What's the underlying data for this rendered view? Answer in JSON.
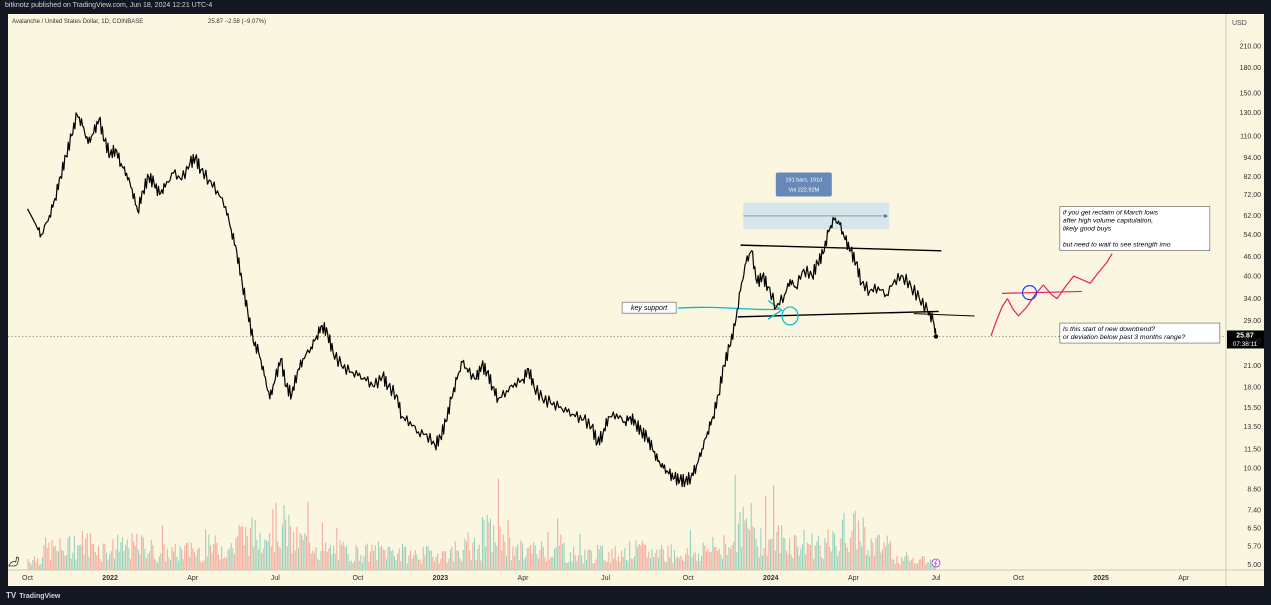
{
  "header": {
    "publisher": "bitknotz published on TradingView.com, Jun 18, 2024 12:21 UTC-4"
  },
  "footer": {
    "brand_mark": "TV",
    "brand": "TradingView"
  },
  "chart_data": {
    "type": "line",
    "title": "Avalanche / United States Dollar, 1D, COINBASE",
    "quote": "25.87  −2.58 (−9.07%)",
    "currency": "USD",
    "price_scale": "log",
    "ylim": [
      4.8,
      250
    ],
    "y_ticks": [
      210,
      180,
      150,
      130,
      110,
      94,
      82,
      72,
      62,
      54,
      46,
      40,
      34,
      29,
      25,
      21,
      18,
      15.5,
      13.5,
      11.5,
      10,
      8.6,
      7.4,
      6.5,
      5.7,
      5
    ],
    "x_ticks": [
      {
        "label": "Oct",
        "t": 0
      },
      {
        "label": "2022",
        "t": 3
      },
      {
        "label": "Apr",
        "t": 6
      },
      {
        "label": "Jul",
        "t": 9
      },
      {
        "label": "Oct",
        "t": 12
      },
      {
        "label": "2023",
        "t": 15
      },
      {
        "label": "Apr",
        "t": 18
      },
      {
        "label": "Jul",
        "t": 21
      },
      {
        "label": "Oct",
        "t": 24
      },
      {
        "label": "2024",
        "t": 27
      },
      {
        "label": "Apr",
        "t": 30
      },
      {
        "label": "Jul",
        "t": 33
      },
      {
        "label": "Oct",
        "t": 36
      },
      {
        "label": "2025",
        "t": 39
      },
      {
        "label": "Apr",
        "t": 42
      }
    ],
    "x_range": [
      -0.2,
      43.1
    ],
    "time_unit": "months since 2021-10-01",
    "series": [
      {
        "name": "AVAX/USD close",
        "points": [
          [
            0.0,
            65
          ],
          [
            0.3,
            58
          ],
          [
            0.5,
            54
          ],
          [
            0.8,
            62
          ],
          [
            1.0,
            70
          ],
          [
            1.2,
            82
          ],
          [
            1.4,
            95
          ],
          [
            1.6,
            110
          ],
          [
            1.8,
            128
          ],
          [
            2.0,
            118
          ],
          [
            2.2,
            104
          ],
          [
            2.4,
            112
          ],
          [
            2.6,
            124
          ],
          [
            2.8,
            106
          ],
          [
            3.0,
            96
          ],
          [
            3.2,
            100
          ],
          [
            3.4,
            90
          ],
          [
            3.6,
            84
          ],
          [
            3.8,
            75
          ],
          [
            4.0,
            64
          ],
          [
            4.2,
            74
          ],
          [
            4.4,
            82
          ],
          [
            4.6,
            78
          ],
          [
            4.8,
            72
          ],
          [
            5.0,
            76
          ],
          [
            5.3,
            84
          ],
          [
            5.6,
            80
          ],
          [
            5.9,
            90
          ],
          [
            6.1,
            94
          ],
          [
            6.3,
            86
          ],
          [
            6.6,
            80
          ],
          [
            6.9,
            74
          ],
          [
            7.2,
            66
          ],
          [
            7.4,
            56
          ],
          [
            7.6,
            48
          ],
          [
            7.8,
            38
          ],
          [
            8.0,
            31
          ],
          [
            8.2,
            25
          ],
          [
            8.4,
            23
          ],
          [
            8.6,
            19.5
          ],
          [
            8.8,
            16.5
          ],
          [
            9.0,
            19
          ],
          [
            9.2,
            22
          ],
          [
            9.4,
            18
          ],
          [
            9.6,
            17
          ],
          [
            9.8,
            20
          ],
          [
            10.0,
            22
          ],
          [
            10.3,
            24
          ],
          [
            10.5,
            26
          ],
          [
            10.7,
            28
          ],
          [
            10.9,
            26.5
          ],
          [
            11.1,
            23
          ],
          [
            11.4,
            21
          ],
          [
            11.7,
            20
          ],
          [
            12.0,
            19.5
          ],
          [
            12.3,
            18.8
          ],
          [
            12.6,
            18
          ],
          [
            12.9,
            19.5
          ],
          [
            13.1,
            18
          ],
          [
            13.4,
            17
          ],
          [
            13.6,
            14.5
          ],
          [
            13.9,
            14
          ],
          [
            14.2,
            13
          ],
          [
            14.5,
            12.8
          ],
          [
            14.8,
            11.8
          ],
          [
            15.0,
            12.5
          ],
          [
            15.2,
            14
          ],
          [
            15.4,
            16.5
          ],
          [
            15.6,
            19
          ],
          [
            15.8,
            21.5
          ],
          [
            16.0,
            20
          ],
          [
            16.3,
            19
          ],
          [
            16.5,
            21
          ],
          [
            16.7,
            20
          ],
          [
            16.9,
            18
          ],
          [
            17.1,
            16.5
          ],
          [
            17.4,
            17.5
          ],
          [
            17.7,
            18.5
          ],
          [
            18.0,
            19
          ],
          [
            18.2,
            20.5
          ],
          [
            18.4,
            18
          ],
          [
            18.7,
            16.5
          ],
          [
            19.0,
            16
          ],
          [
            19.3,
            15.5
          ],
          [
            19.6,
            15
          ],
          [
            19.9,
            14.5
          ],
          [
            20.2,
            14.2
          ],
          [
            20.5,
            13.5
          ],
          [
            20.7,
            12
          ],
          [
            20.9,
            12.8
          ],
          [
            21.1,
            14.5
          ],
          [
            21.4,
            14.8
          ],
          [
            21.7,
            14
          ],
          [
            21.9,
            14.5
          ],
          [
            22.1,
            13.8
          ],
          [
            22.3,
            13
          ],
          [
            22.5,
            12.5
          ],
          [
            22.7,
            11.5
          ],
          [
            22.9,
            10.5
          ],
          [
            23.1,
            10
          ],
          [
            23.3,
            9.6
          ],
          [
            23.5,
            9.3
          ],
          [
            23.7,
            9.2
          ],
          [
            23.9,
            9.1
          ],
          [
            24.1,
            9.4
          ],
          [
            24.3,
            10.2
          ],
          [
            24.5,
            11.5
          ],
          [
            24.7,
            13
          ],
          [
            24.9,
            14.5
          ],
          [
            25.1,
            17
          ],
          [
            25.3,
            21
          ],
          [
            25.5,
            24
          ],
          [
            25.7,
            28
          ],
          [
            25.9,
            36
          ],
          [
            26.1,
            44
          ],
          [
            26.3,
            48
          ],
          [
            26.5,
            38
          ],
          [
            26.7,
            40
          ],
          [
            26.9,
            37
          ],
          [
            27.2,
            32
          ],
          [
            27.5,
            35
          ],
          [
            27.7,
            39
          ],
          [
            27.9,
            37
          ],
          [
            28.2,
            42
          ],
          [
            28.5,
            40
          ],
          [
            28.7,
            44
          ],
          [
            28.9,
            47
          ],
          [
            29.1,
            55
          ],
          [
            29.3,
            60
          ],
          [
            29.5,
            58
          ],
          [
            29.7,
            52
          ],
          [
            29.9,
            48
          ],
          [
            30.1,
            44
          ],
          [
            30.3,
            38
          ],
          [
            30.6,
            36
          ],
          [
            30.9,
            37
          ],
          [
            31.2,
            35
          ],
          [
            31.5,
            39
          ],
          [
            31.8,
            40
          ],
          [
            32.1,
            37
          ],
          [
            32.4,
            34
          ],
          [
            32.7,
            31
          ],
          [
            32.9,
            29
          ],
          [
            33.0,
            25.87
          ]
        ]
      },
      {
        "name": "Projection (drawing)",
        "color": "#e91e63",
        "points": [
          [
            35.0,
            26
          ],
          [
            35.2,
            29
          ],
          [
            35.4,
            32
          ],
          [
            35.6,
            34
          ],
          [
            35.8,
            31.5
          ],
          [
            36.0,
            30
          ],
          [
            36.3,
            32
          ],
          [
            36.6,
            35
          ],
          [
            36.9,
            37.5
          ],
          [
            37.2,
            35
          ],
          [
            37.4,
            34
          ],
          [
            37.7,
            37
          ],
          [
            38.0,
            40
          ],
          [
            38.3,
            39
          ],
          [
            38.6,
            38
          ],
          [
            38.9,
            41
          ],
          [
            39.2,
            44
          ],
          [
            39.4,
            47
          ]
        ]
      }
    ],
    "volume": {
      "name": "Volume",
      "approx_months": [
        0,
        1,
        2,
        3,
        4,
        5,
        6,
        7,
        8,
        9,
        10,
        11,
        12,
        13,
        14,
        15,
        16,
        17,
        18,
        19,
        20,
        21,
        22,
        23,
        24,
        25,
        26,
        27,
        28,
        29,
        30,
        31,
        32,
        33
      ],
      "relative": [
        0.12,
        0.22,
        0.28,
        0.22,
        0.25,
        0.18,
        0.2,
        0.24,
        0.36,
        0.45,
        0.3,
        0.2,
        0.18,
        0.2,
        0.16,
        0.17,
        0.22,
        0.36,
        0.2,
        0.22,
        0.16,
        0.17,
        0.2,
        0.18,
        0.17,
        0.22,
        0.45,
        0.33,
        0.28,
        0.27,
        0.4,
        0.25,
        0.12,
        0.08
      ]
    },
    "annotations": {
      "measure_label_1": "191 bars, 191d",
      "measure_label_2": "Vol 222.92M",
      "key_support": "key support",
      "note_top": [
        "if you get reclaim of March lows",
        "after high volume capitulation,",
        "likely good buys",
        "",
        "but need to wait to see strength imo"
      ],
      "note_bottom": [
        "Is this start of new downtrend?",
        "or deviation below past 3 months range?"
      ]
    },
    "last_price_badge": {
      "price": "25.87",
      "countdown": "07:38:11"
    },
    "colors": {
      "background": "#fbf6df",
      "price": "#000000",
      "volume_up": "#26a69a",
      "volume_down": "#ef5350",
      "support_arrow": "#00bcd4",
      "projection": "#e91e63",
      "reclaim_line": "#e91e63",
      "circle": "#1e40ff",
      "measure_box": "#c7dff0",
      "measure_label": "#6789b8"
    }
  }
}
